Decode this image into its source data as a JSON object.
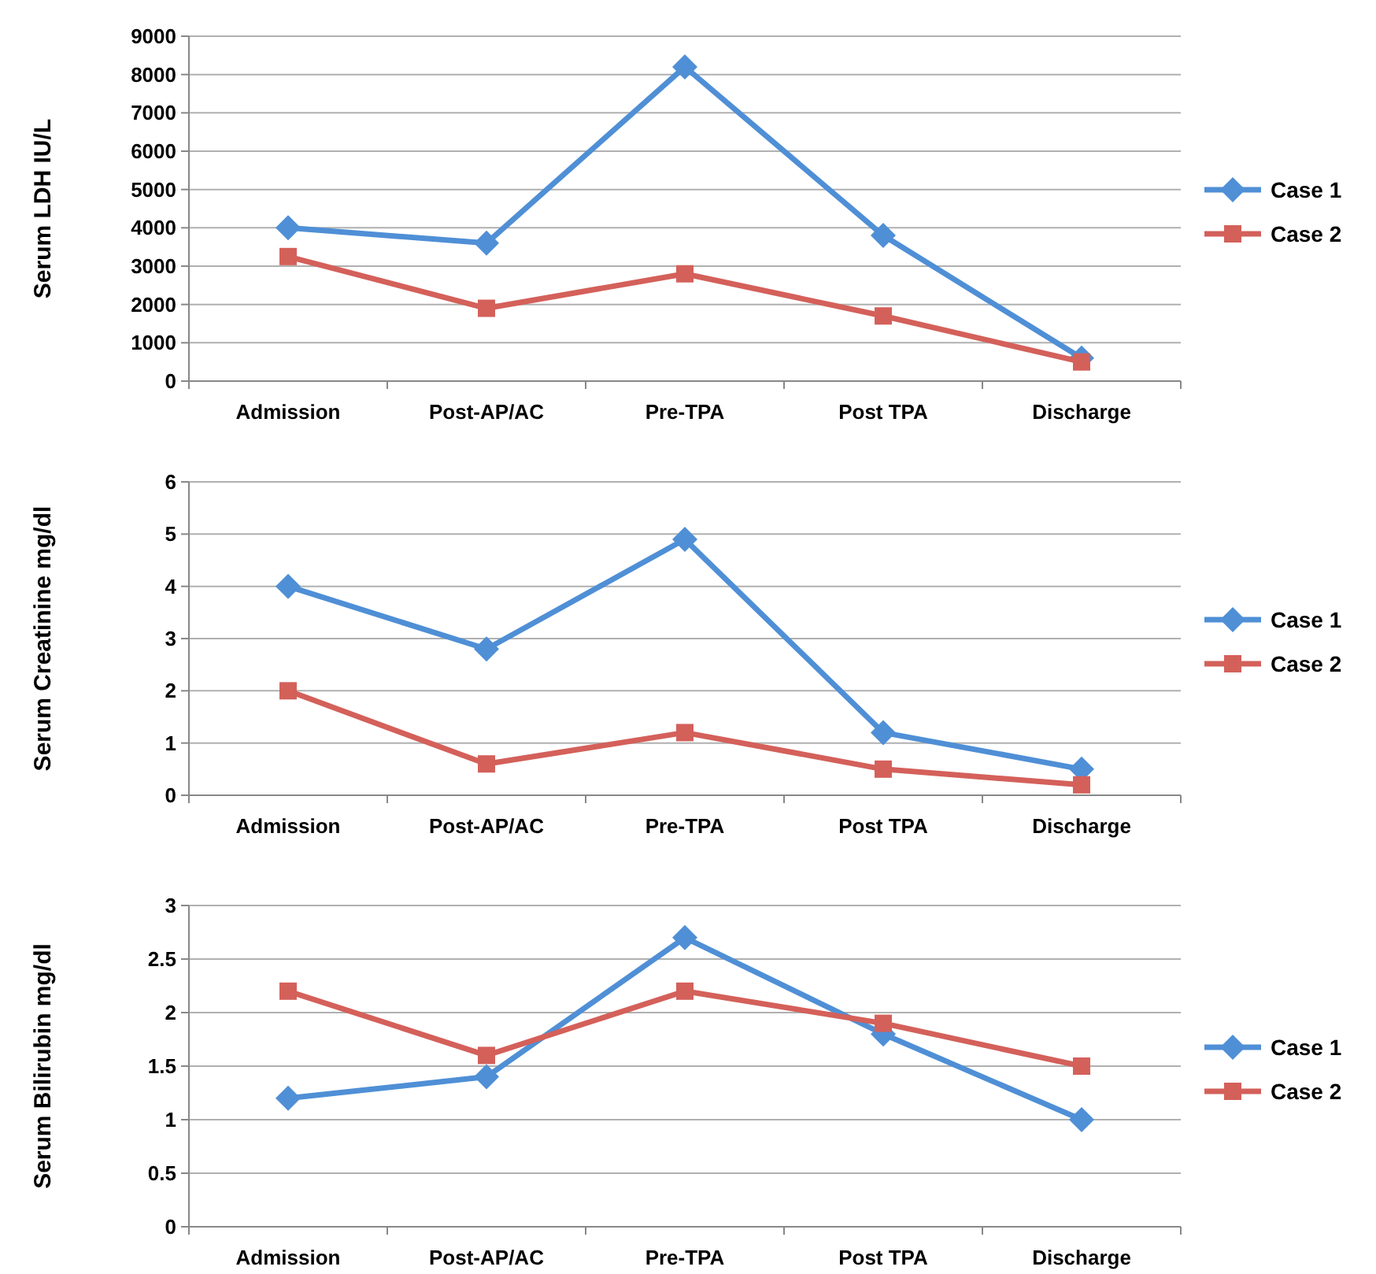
{
  "chart_data": [
    {
      "type": "line",
      "ylabel": "Serum LDH IU/L",
      "categories": [
        "Admission",
        "Post-AP/AC",
        "Pre-TPA",
        "Post TPA",
        "Discharge"
      ],
      "ylim": [
        0,
        9000
      ],
      "yticks": [
        0,
        1000,
        2000,
        3000,
        4000,
        5000,
        6000,
        7000,
        8000,
        9000
      ],
      "grid": "y",
      "legend": "right",
      "series": [
        {
          "name": "Case 1",
          "color": "#4f8fd6",
          "marker": "diamond",
          "values": [
            4000,
            3600,
            8200,
            3800,
            600
          ]
        },
        {
          "name": "Case 2",
          "color": "#d4605a",
          "marker": "square",
          "values": [
            3250,
            1900,
            2800,
            1700,
            500
          ]
        }
      ]
    },
    {
      "type": "line",
      "ylabel": "Serum Creatinine mg/dl",
      "categories": [
        "Admission",
        "Post-AP/AC",
        "Pre-TPA",
        "Post TPA",
        "Discharge"
      ],
      "ylim": [
        0,
        6
      ],
      "yticks": [
        0,
        1,
        2,
        3,
        4,
        5,
        6
      ],
      "grid": "y",
      "legend": "right",
      "series": [
        {
          "name": "Case 1",
          "color": "#4f8fd6",
          "marker": "diamond",
          "values": [
            4,
            2.8,
            4.9,
            1.2,
            0.5
          ]
        },
        {
          "name": "Case 2",
          "color": "#d4605a",
          "marker": "square",
          "values": [
            2,
            0.6,
            1.2,
            0.5,
            0.2
          ]
        }
      ]
    },
    {
      "type": "line",
      "ylabel": "Serum Bilirubin mg/dl",
      "categories": [
        "Admission",
        "Post-AP/AC",
        "Pre-TPA",
        "Post TPA",
        "Discharge"
      ],
      "ylim": [
        0,
        3
      ],
      "yticks": [
        0,
        0.5,
        1,
        1.5,
        2,
        2.5,
        3
      ],
      "grid": "y",
      "legend": "right",
      "series": [
        {
          "name": "Case 1",
          "color": "#4f8fd6",
          "marker": "diamond",
          "values": [
            1.2,
            1.4,
            2.7,
            1.8,
            1.0
          ]
        },
        {
          "name": "Case 2",
          "color": "#d4605a",
          "marker": "square",
          "values": [
            2.2,
            1.6,
            2.2,
            1.9,
            1.5
          ]
        }
      ]
    }
  ]
}
